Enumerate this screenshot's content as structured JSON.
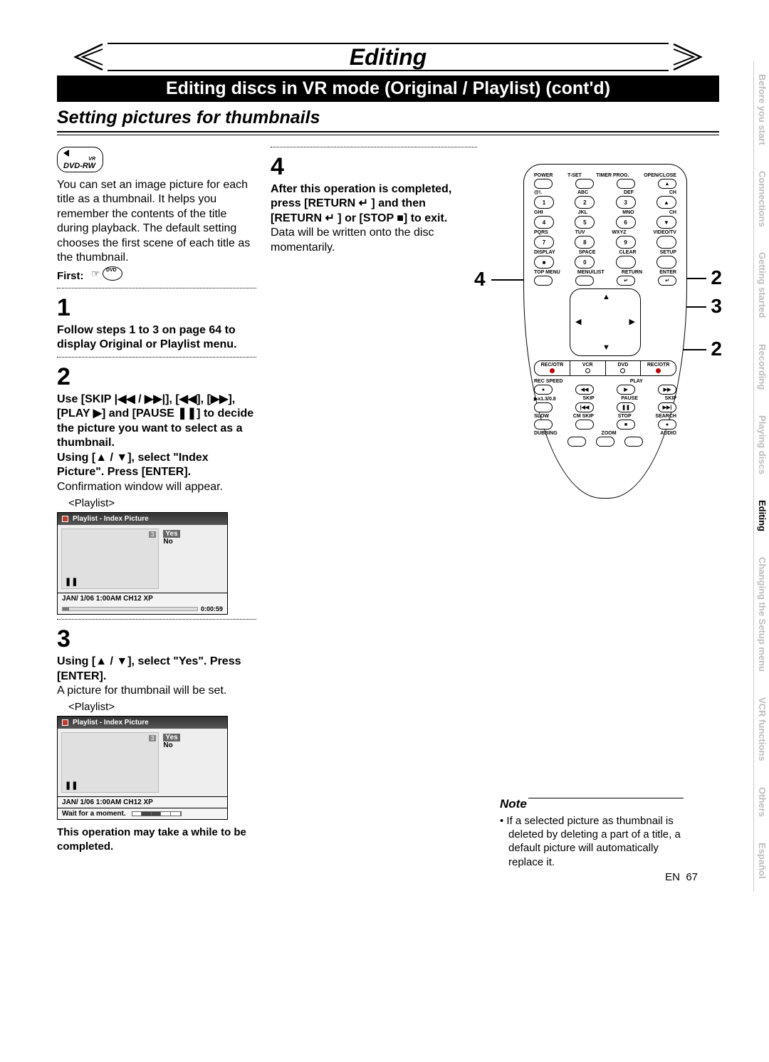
{
  "banner": {
    "title": "Editing"
  },
  "subtitle": "Editing discs in VR mode (Original / Playlist) (cont'd)",
  "section": "Setting pictures for thumbnails",
  "dvd_badge": "DVD-RW",
  "intro": "You can set an image picture for each title as a thumbnail. It helps you remember the contents of the title during playback. The default setting chooses the first scene of each title as the thumbnail.",
  "first_label": "First:",
  "step1": {
    "num": "1",
    "text": "Follow steps 1 to 3 on page 64 to display Original or Playlist menu."
  },
  "step2": {
    "num": "2",
    "line1": "Use [SKIP |◀◀ / ▶▶|], [◀◀], [▶▶], [PLAY ▶] and [PAUSE ❚❚] to decide the picture you want to select as a thumbnail.",
    "line2": "Using [▲ / ▼], select \"Index Picture\". Press [ENTER].",
    "line3": "Confirmation window will appear.",
    "playlist_label": "<Playlist>",
    "osd": {
      "title": "Playlist - Index Picture",
      "badge": "3",
      "yes": "Yes",
      "no": "No",
      "status": "JAN/ 1/06 1:00AM CH12 XP",
      "time": "0:00:59"
    }
  },
  "step3": {
    "num": "3",
    "line1": "Using [▲ / ▼], select \"Yes\". Press [ENTER].",
    "line2": "A picture for thumbnail will be set.",
    "playlist_label": "<Playlist>",
    "osd": {
      "title": "Playlist - Index Picture",
      "badge": "3",
      "yes": "Yes",
      "no": "No",
      "status": "JAN/ 1/06 1:00AM CH12 XP",
      "wait": "Wait for a moment."
    },
    "warning": "This operation may take a while to be completed."
  },
  "step4": {
    "num": "4",
    "line1": "After this operation is completed, press [RETURN ↵ ] and then [RETURN ↵ ] or [STOP ■] to exit.",
    "line2": "Data will be written onto the disc momentarily."
  },
  "remote": {
    "row1_labels": [
      "POWER",
      "T-SET",
      "TIMER PROG.",
      "OPEN/CLOSE"
    ],
    "row1": [
      "",
      "",
      "",
      "▲"
    ],
    "row2_labels": [
      "@!.",
      "ABC",
      "DEF",
      "CH"
    ],
    "row2": [
      "1",
      "2",
      "3",
      "▲"
    ],
    "row3_labels": [
      "GHI",
      "JKL",
      "MNO",
      "CH"
    ],
    "row3": [
      "4",
      "5",
      "6",
      "▼"
    ],
    "row4_labels": [
      "PQRS",
      "TUV",
      "WXYZ",
      "VIDEO/TV"
    ],
    "row4": [
      "7",
      "8",
      "9",
      ""
    ],
    "row5_labels": [
      "DISPLAY",
      "SPACE",
      "CLEAR",
      "SETUP"
    ],
    "row5": [
      "■",
      "0",
      "",
      ""
    ],
    "row6_labels": [
      "TOP MENU",
      "MENU/LIST",
      "RETURN",
      "ENTER"
    ],
    "row6": [
      "",
      "",
      "↵",
      "↵"
    ],
    "mode_labels": [
      "REC/OTR",
      "VCR",
      "DVD",
      "REC/OTR"
    ],
    "row7_labels": [
      "REC SPEED",
      "",
      "PLAY",
      ""
    ],
    "row7": [
      "●",
      "◀◀",
      "▶",
      "▶▶"
    ],
    "row8_labels": [
      "▶x1.3/0.8",
      "SKIP",
      "PAUSE",
      "SKIP"
    ],
    "row8": [
      "",
      "|◀◀",
      "❚❚",
      "▶▶|"
    ],
    "row9_labels": [
      "SLOW",
      "CM SKIP",
      "STOP",
      "SEARCH"
    ],
    "row9": [
      "",
      "",
      "■",
      "●"
    ],
    "row10_labels": [
      "DUBBING",
      "ZOOM",
      "AUDIO",
      ""
    ],
    "row10": [
      "",
      "",
      "",
      ""
    ]
  },
  "callouts": {
    "c1": "4",
    "c2": "2",
    "c3": "3",
    "c4": "2"
  },
  "note": {
    "title": "Note",
    "text": "If a selected picture as thumbnail is deleted by deleting a part of a title, a default picture will automatically replace it."
  },
  "tabs": [
    "Before you start",
    "Connections",
    "Getting started",
    "Recording",
    "Playing discs",
    "Editing",
    "Changing the Setup menu",
    "VCR functions",
    "Others",
    "Español"
  ],
  "active_tab": "Editing",
  "page_num_prefix": "EN",
  "page_num": "67"
}
